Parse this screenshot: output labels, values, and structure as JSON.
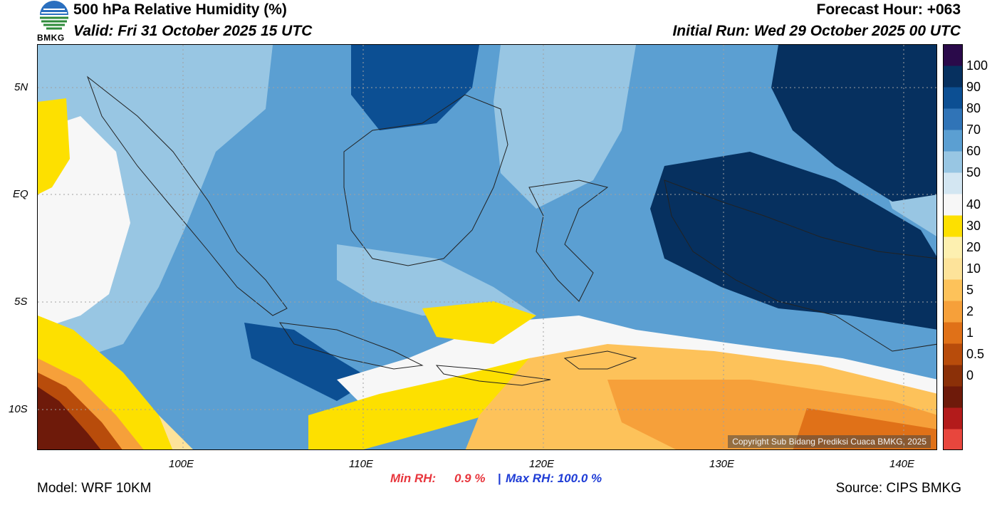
{
  "header": {
    "title": "500 hPa Relative Humidity (%)",
    "valid": "Valid: Fri 31 October 2025 15 UTC",
    "forecast_hour": "Forecast Hour: +063",
    "initial_run": "Initial Run: Wed 29 October 2025 00 UTC"
  },
  "logo": {
    "text": "BMKG"
  },
  "axes": {
    "lat_ticks": [
      "5N",
      "EQ",
      "5S",
      "10S"
    ],
    "lon_ticks": [
      "100E",
      "110E",
      "120E",
      "130E",
      "140E"
    ]
  },
  "colorbar": {
    "labels": [
      "100",
      "90",
      "80",
      "70",
      "60",
      "50",
      "40",
      "30",
      "20",
      "10",
      "5",
      "2",
      "1",
      "0.5",
      "0"
    ],
    "colors": [
      "#e8463d",
      "#b31b1b",
      "#6e1a0a",
      "#8b3008",
      "#b84c0b",
      "#e07118",
      "#f6a03a",
      "#fdc25a",
      "#fde39a",
      "#fdf0b0",
      "#fde000",
      "#f7f7f7",
      "#d3e6f2",
      "#98c6e3",
      "#5b9fd2",
      "#3074b7",
      "#0c4f93",
      "#06305f",
      "#2a0a4a"
    ]
  },
  "stats": {
    "min_label": "Min RH:",
    "min_value": "0.9 %",
    "separator": "|",
    "max_label": "Max RH: 100.0 %"
  },
  "colors": {
    "min_color": "#e8363d",
    "max_color": "#1f3dd6"
  },
  "footer": {
    "model": "Model: WRF 10KM",
    "source": "Source: CIPS BMKG",
    "copyright": "Copyright Sub Bidang Prediksi Cuaca BMKG, 2025"
  }
}
